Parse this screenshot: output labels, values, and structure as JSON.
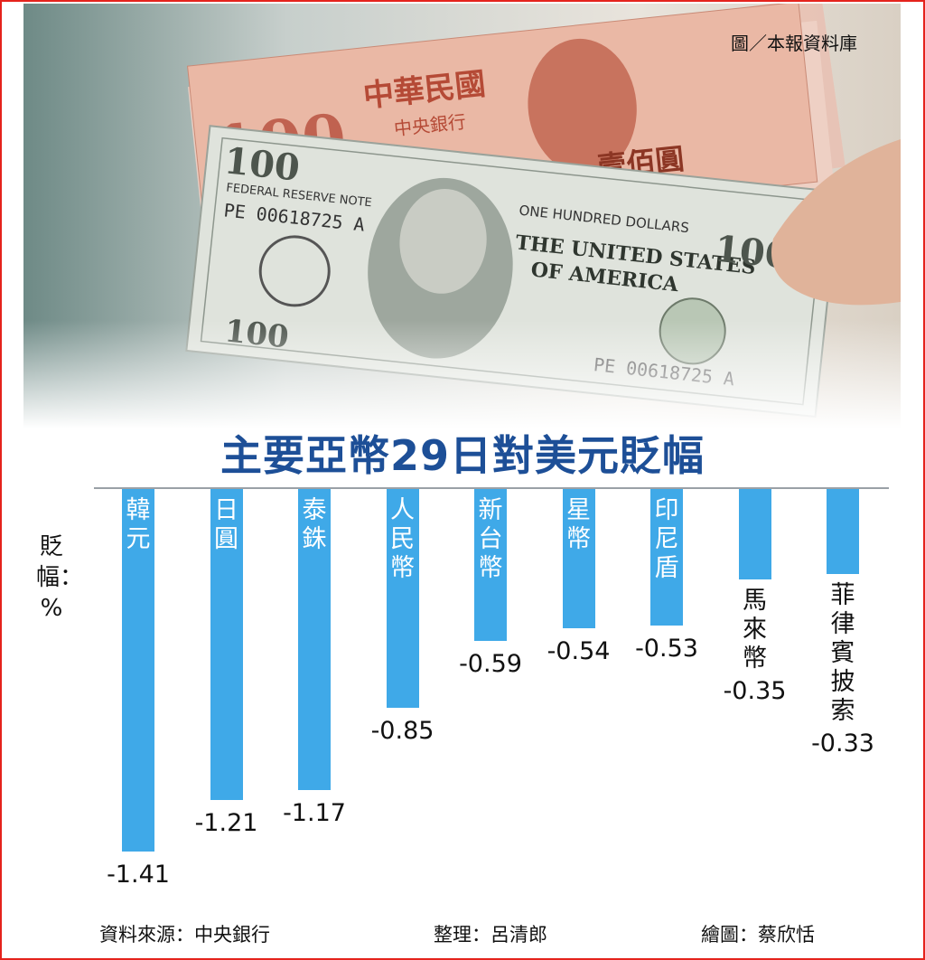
{
  "photo_credit": "圖／本報資料庫",
  "photo": {
    "banknotes": [
      "100",
      "中華民國",
      "中央銀行",
      "壹佰圓",
      "FEDERAL RESERVE NOTE",
      "PE 00618725 A",
      "THE UNITED STATES OF AMERICA",
      "ONE HUNDRED DOLLARS"
    ]
  },
  "colors": {
    "bar": "#3fa9e8",
    "title": "#1d4f97",
    "frame": "#e5231d"
  },
  "chart_data": {
    "type": "bar",
    "title": "主要亞幣29日對美元貶幅",
    "ylabel": "貶幅：%",
    "categories": [
      "韓元",
      "日圓",
      "泰銖",
      "人民幣",
      "新台幣",
      "星幣",
      "印尼盾",
      "馬來幣",
      "菲律賓披索"
    ],
    "values": [
      -1.41,
      -1.21,
      -1.17,
      -0.85,
      -0.59,
      -0.54,
      -0.53,
      -0.35,
      -0.33
    ],
    "value_labels": [
      "-1.41",
      "-1.21",
      "-1.17",
      "-0.85",
      "-0.59",
      "-0.54",
      "-0.53",
      "-0.35",
      "-0.33"
    ],
    "ylim": [
      -1.45,
      0
    ]
  },
  "footer": {
    "source": "資料來源：中央銀行",
    "compiled": "整理：呂清郎",
    "drawn": "繪圖：蔡欣恬"
  }
}
